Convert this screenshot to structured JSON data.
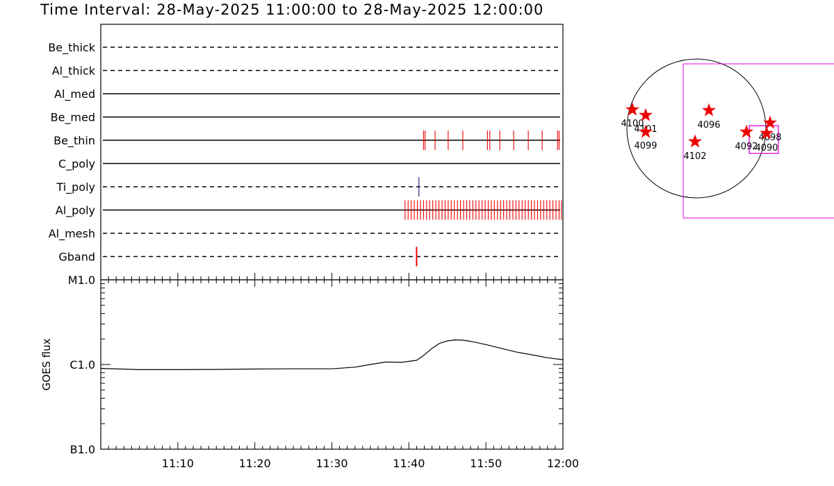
{
  "header": {
    "title": "Time Interval: 28-May-2025 11:00:00 to 28-May-2025 12:00:00"
  },
  "colors": {
    "events": "#ee0000",
    "ti_event": "#1a1a6e",
    "fov": "#e000e0",
    "stars": "#ee0000",
    "axes": "#000000"
  },
  "chart_data": [
    {
      "type": "timeline",
      "time_range": [
        "11:00",
        "12:00"
      ],
      "channels": [
        {
          "name": "Be_thick",
          "style": "dashed",
          "events": []
        },
        {
          "name": "Al_thick",
          "style": "dashed",
          "events": []
        },
        {
          "name": "Al_med",
          "style": "solid",
          "events": []
        },
        {
          "name": "Be_med",
          "style": "solid",
          "events": []
        },
        {
          "name": "Be_thin",
          "style": "solid",
          "events": [
            41.9,
            42.1,
            43.4,
            45.1,
            47.0,
            50.2,
            50.5,
            51.8,
            53.6,
            55.5,
            57.3,
            59.3,
            59.5
          ]
        },
        {
          "name": "C_poly",
          "style": "solid",
          "events": []
        },
        {
          "name": "Ti_poly",
          "style": "dashed",
          "event_color": "ti_event",
          "events": [
            41.3
          ]
        },
        {
          "name": "Al_poly",
          "style": "solid",
          "events": [
            39.5,
            39.9,
            40.3,
            40.7,
            41.1,
            41.5,
            41.9,
            42.3,
            42.7,
            43.1,
            43.5,
            43.9,
            44.3,
            44.7,
            45.1,
            45.5,
            45.9,
            46.3,
            46.7,
            47.1,
            47.5,
            47.9,
            48.3,
            48.7,
            49.1,
            49.5,
            49.9,
            50.3,
            50.7,
            51.1,
            51.5,
            51.9,
            52.3,
            52.7,
            53.1,
            53.5,
            53.9,
            54.3,
            54.7,
            55.1,
            55.5,
            55.9,
            56.3,
            56.7,
            57.1,
            57.5,
            57.9,
            58.3,
            58.7,
            59.1,
            59.5,
            59.8
          ]
        },
        {
          "name": "Al_mesh",
          "style": "dashed",
          "events": []
        },
        {
          "name": "Gband",
          "style": "dashed",
          "events": [
            41.0
          ]
        }
      ]
    },
    {
      "type": "line",
      "ylabel": "GOES flux",
      "yscale": "log",
      "ylim": [
        1e-07,
        1e-05
      ],
      "yticks": [
        {
          "label": "B1.0",
          "value": 1e-07
        },
        {
          "label": "C1.0",
          "value": 1e-06
        },
        {
          "label": "M1.0",
          "value": 1e-05
        }
      ],
      "xticks": [
        "11:10",
        "11:20",
        "11:30",
        "11:40",
        "11:50",
        "12:00"
      ],
      "xtick_values": [
        10,
        20,
        30,
        40,
        50,
        60
      ],
      "series": [
        {
          "x": [
            0,
            5,
            10,
            15,
            20,
            25,
            30,
            33,
            35,
            37,
            39,
            41,
            42,
            43,
            44,
            45,
            46,
            47,
            48,
            50,
            52,
            54,
            56,
            58,
            60
          ],
          "y": [
            9e-07,
            8.7e-07,
            8.7e-07,
            8.75e-07,
            8.85e-07,
            8.9e-07,
            8.9e-07,
            9.3e-07,
            1e-06,
            1.07e-06,
            1.06e-06,
            1.12e-06,
            1.3e-06,
            1.55e-06,
            1.78e-06,
            1.9e-06,
            1.95e-06,
            1.94e-06,
            1.88e-06,
            1.72e-06,
            1.55e-06,
            1.4e-06,
            1.3e-06,
            1.2e-06,
            1.14e-06
          ]
        }
      ]
    },
    {
      "type": "scatter",
      "description_words": "solar disk with active regions",
      "regions": [
        {
          "label": "4100",
          "x": -0.92,
          "y": 0.27
        },
        {
          "label": "4101",
          "x": -0.73,
          "y": 0.19
        },
        {
          "label": "4099",
          "x": -0.73,
          "y": -0.05
        },
        {
          "label": "4096",
          "x": 0.18,
          "y": 0.26
        },
        {
          "label": "4102",
          "x": -0.02,
          "y": -0.19
        },
        {
          "label": "4092",
          "x": 0.72,
          "y": -0.05
        },
        {
          "label": "4098",
          "x": 1.06,
          "y": 0.08
        },
        {
          "label": "4090",
          "x": 1.01,
          "y": -0.07
        }
      ]
    }
  ]
}
